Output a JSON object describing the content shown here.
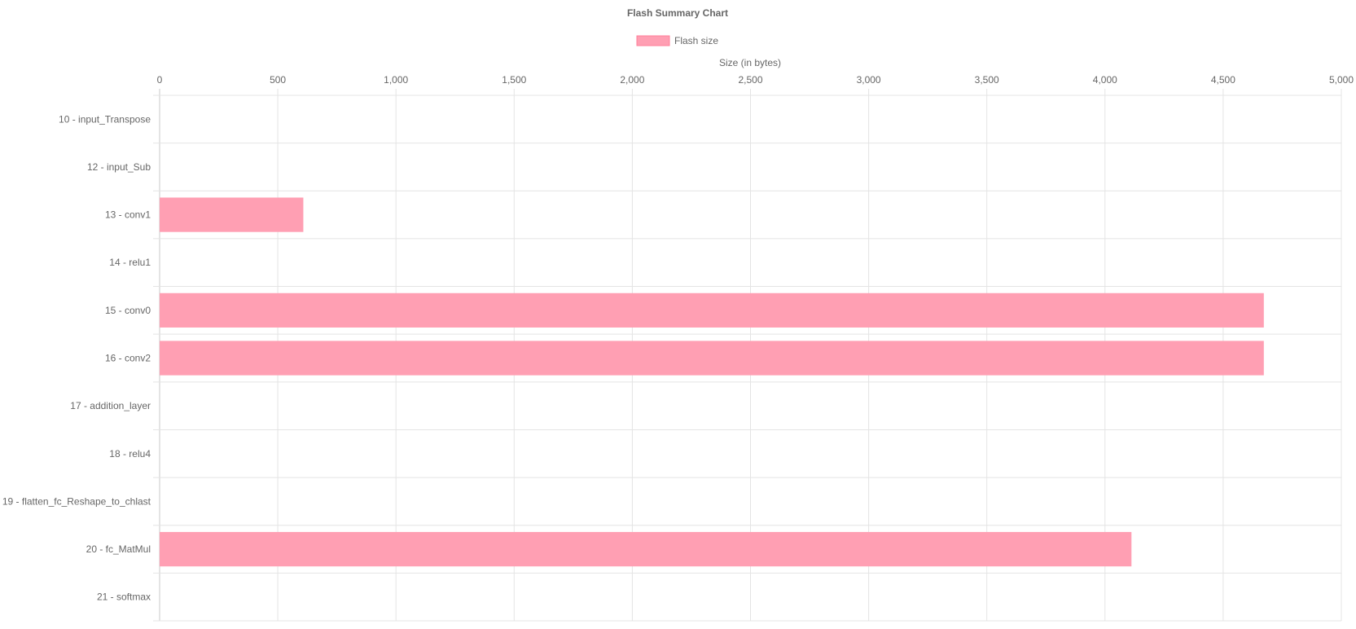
{
  "chart_data": {
    "type": "bar",
    "orientation": "horizontal",
    "title": "Flash Summary Chart",
    "xlabel": "Size (in bytes)",
    "ylabel": "",
    "xlim": [
      0,
      5000
    ],
    "x_ticks": [
      "0",
      "500",
      "1,000",
      "1,500",
      "2,000",
      "2,500",
      "3,000",
      "3,500",
      "4,000",
      "4,500",
      "5,000"
    ],
    "x_tick_values": [
      0,
      500,
      1000,
      1500,
      2000,
      2500,
      3000,
      3500,
      4000,
      4500,
      5000
    ],
    "grid": true,
    "legend_position": "top",
    "categories": [
      "10 - input_Transpose",
      "12 - input_Sub",
      "13 - conv1",
      "14 - relu1",
      "15 - conv0",
      "16 - conv2",
      "17 - addition_layer",
      "18 - relu4",
      "19 - flatten_fc_Reshape_to_chlast",
      "20 - fc_MatMul",
      "21 - softmax"
    ],
    "series": [
      {
        "name": "Flash size",
        "color": "#ff9fb3",
        "values": [
          0,
          0,
          608,
          0,
          4672,
          4672,
          0,
          0,
          0,
          4112,
          0
        ]
      }
    ]
  }
}
